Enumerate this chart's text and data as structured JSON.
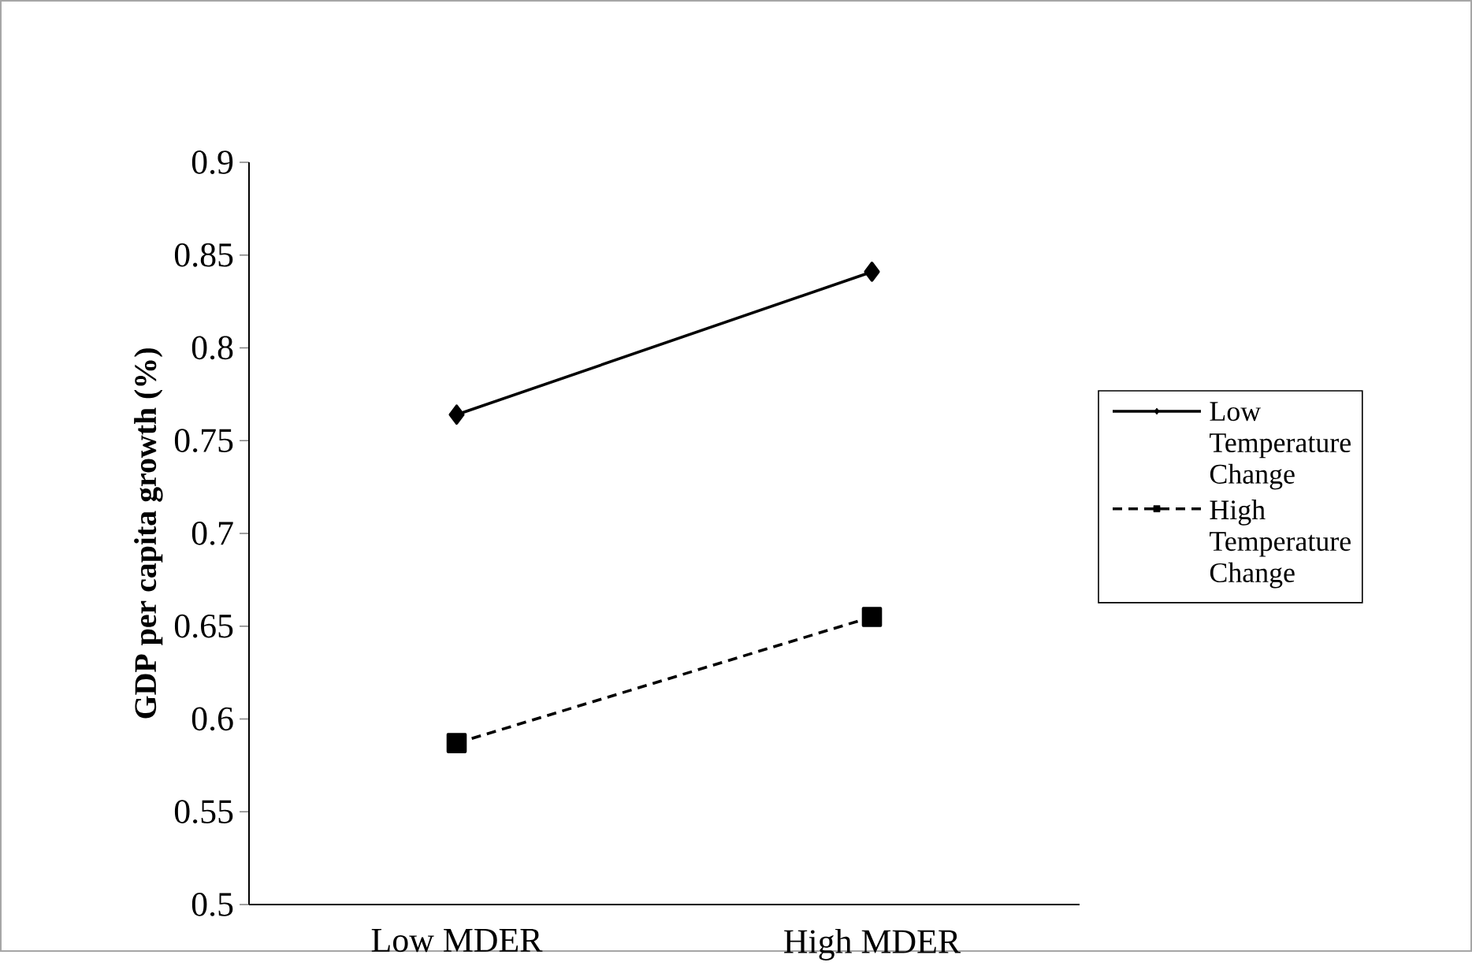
{
  "chart_data": {
    "type": "line",
    "ylabel": "GDP per capita growth (%)",
    "categories": [
      "Low MDER",
      "High MDER"
    ],
    "series": [
      {
        "name": "Low Temperature Change",
        "color": "#000000",
        "marker": "diamond",
        "line_style": "solid",
        "values": [
          0.764,
          0.841
        ]
      },
      {
        "name": "High Temperature Change",
        "color": "#000000",
        "marker": "square",
        "line_style": "dashed",
        "values": [
          0.587,
          0.655
        ]
      }
    ],
    "ylim": [
      0.5,
      0.9
    ],
    "yticks": [
      0.5,
      0.55,
      0.6,
      0.65,
      0.7,
      0.75,
      0.8,
      0.85,
      0.9
    ],
    "grid": false,
    "legend": "right"
  }
}
